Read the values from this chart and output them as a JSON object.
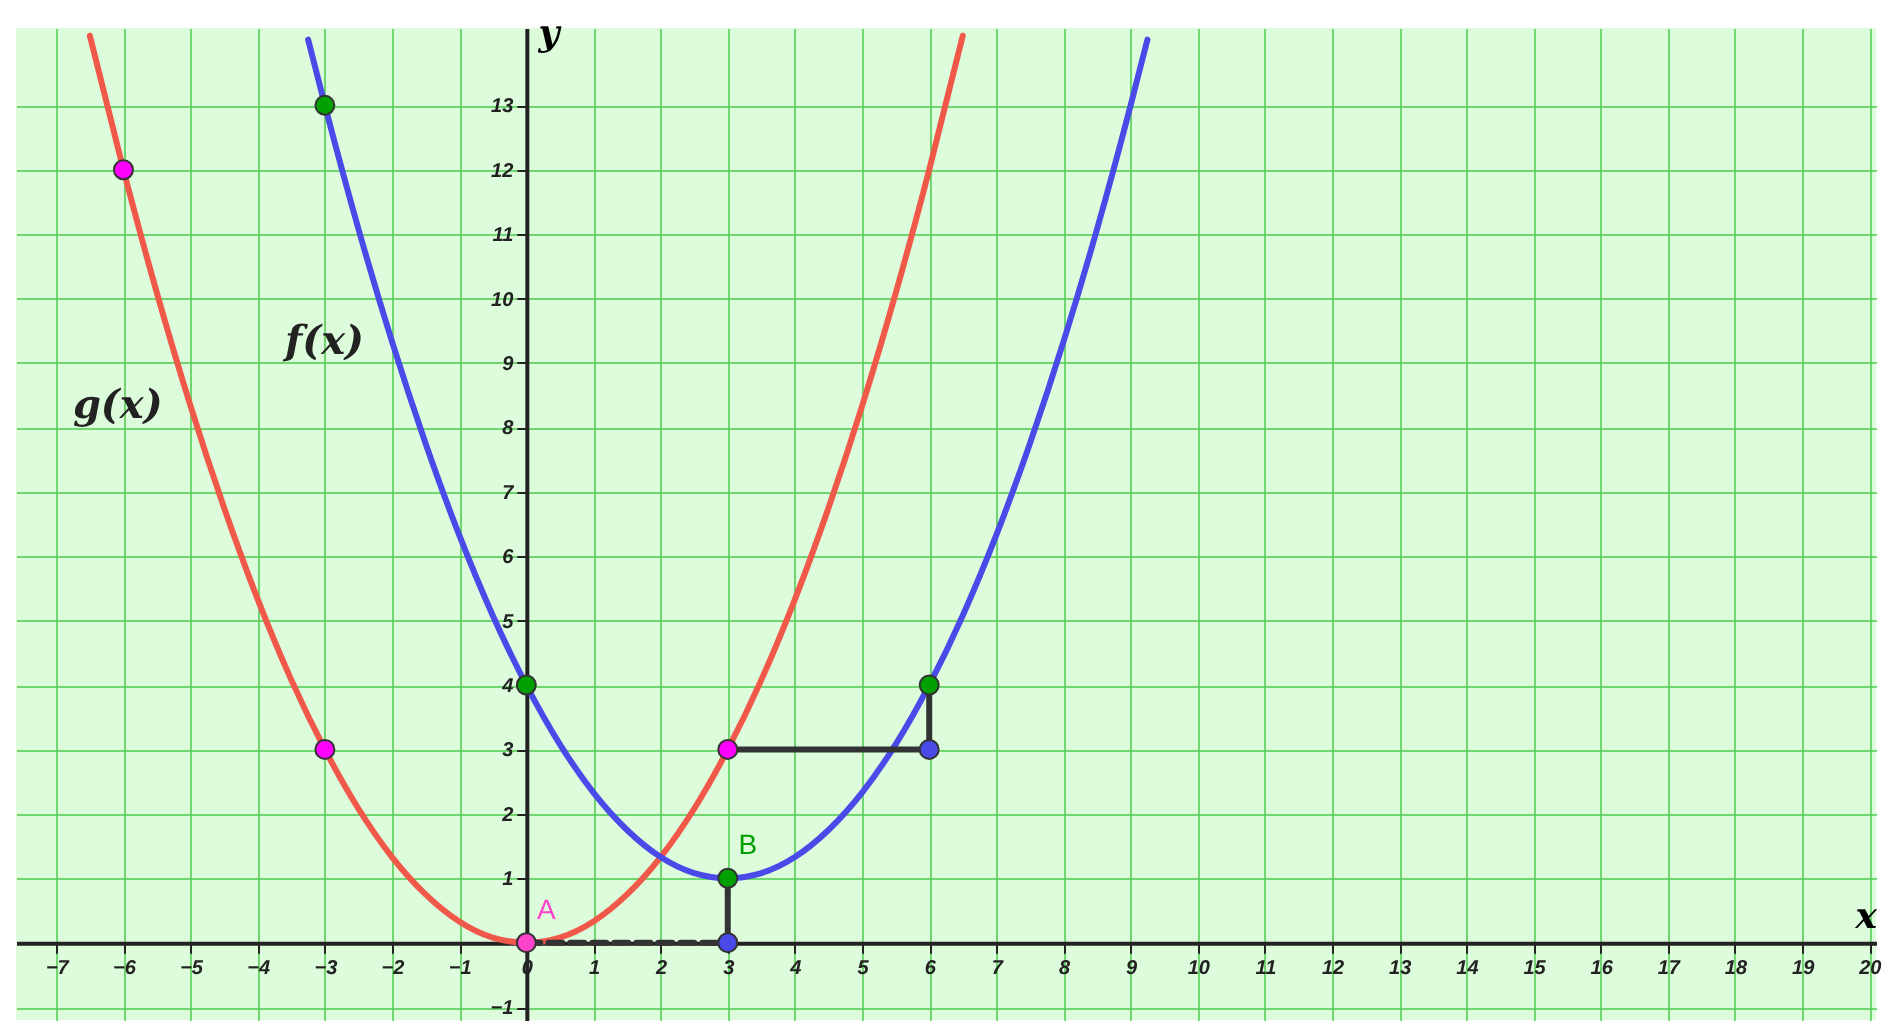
{
  "chart_data": {
    "type": "line",
    "xlabel": "x",
    "ylabel": "y",
    "xlim": [
      -7.6,
      20.1
    ],
    "ylim": [
      -1.2,
      14.2
    ],
    "xticks": [
      -7,
      -6,
      -5,
      -4,
      -3,
      -2,
      -1,
      0,
      1,
      2,
      3,
      4,
      5,
      6,
      7,
      8,
      9,
      10,
      11,
      12,
      13,
      14,
      15,
      16,
      17,
      18,
      19,
      20
    ],
    "yticks": [
      -1,
      1,
      2,
      3,
      4,
      5,
      6,
      7,
      8,
      9,
      10,
      11,
      12,
      13
    ],
    "grid": true,
    "series": [
      {
        "name": "g(x)",
        "color": "#f0584a",
        "x": [
          -6.5,
          -6,
          -5.5,
          -5,
          -4.5,
          -4,
          -3.5,
          -3,
          -2.5,
          -2,
          -1.5,
          -1,
          -0.5,
          0,
          0.5,
          1,
          1.5,
          2,
          2.5,
          3,
          3.5,
          4,
          4.5,
          5,
          5.5,
          6,
          6.5
        ],
        "values": [
          14.08,
          12,
          10.08,
          8.33,
          6.75,
          5.33,
          4.08,
          3,
          2.08,
          1.33,
          0.75,
          0.33,
          0.08,
          0,
          0.08,
          0.33,
          0.75,
          1.33,
          2.08,
          3,
          4.08,
          5.33,
          6.75,
          8.33,
          10.08,
          12,
          14.08
        ]
      },
      {
        "name": "f(x)",
        "color": "#4a4ae8",
        "x": [
          -3.25,
          -3,
          -2.5,
          -2,
          -1.5,
          -1,
          -0.5,
          0,
          0.5,
          1,
          1.5,
          2,
          2.5,
          3,
          3.5,
          4,
          4.5,
          5,
          5.5,
          6,
          6.5,
          7,
          7.5,
          8,
          8.5,
          9,
          9.25
        ],
        "values": [
          14.02,
          13,
          11.08,
          9.33,
          7.75,
          6.33,
          5.08,
          4,
          3.08,
          2.33,
          1.75,
          1.33,
          1.08,
          1,
          1.08,
          1.33,
          1.75,
          2.33,
          3.08,
          4,
          5.08,
          6.33,
          7.75,
          9.33,
          11.08,
          13,
          14.02
        ]
      },
      {
        "color": "#333333",
        "line_style": "dashed",
        "x": [
          0,
          3
        ],
        "values": [
          0,
          0
        ]
      },
      {
        "type": "line",
        "color": "#333333",
        "line_style": "solid",
        "x": [
          3,
          3
        ],
        "values": [
          0,
          1
        ]
      },
      {
        "type": "line",
        "color": "#333333",
        "line_style": "solid",
        "x": [
          3,
          6
        ],
        "values": [
          3,
          3
        ]
      },
      {
        "type": "line",
        "color": "#333333",
        "line_style": "solid",
        "x": [
          6,
          6
        ],
        "values": [
          3,
          4
        ]
      },
      {
        "type": "scatter",
        "marker": "circle",
        "x": [
          -6,
          -3,
          3,
          0
        ],
        "values": [
          12,
          3,
          3,
          0
        ],
        "colors": [
          "#ff00ff",
          "#ff00ff",
          "#ff00ff",
          "#ff44cc"
        ],
        "value_labels": [
          null,
          null,
          null,
          "A"
        ]
      },
      {
        "type": "scatter",
        "marker": "circle",
        "x": [
          -3,
          0,
          3,
          6
        ],
        "values": [
          13,
          4,
          1,
          4
        ],
        "colors": [
          "#00a000",
          "#00a000",
          "#00a000",
          "#00a000"
        ],
        "value_labels": [
          null,
          null,
          "B",
          null
        ]
      },
      {
        "type": "scatter",
        "marker": "circle",
        "x": [
          3,
          6
        ],
        "values": [
          0,
          3
        ],
        "colors": [
          "#4a4ae8",
          "#4a4ae8"
        ]
      }
    ]
  }
}
